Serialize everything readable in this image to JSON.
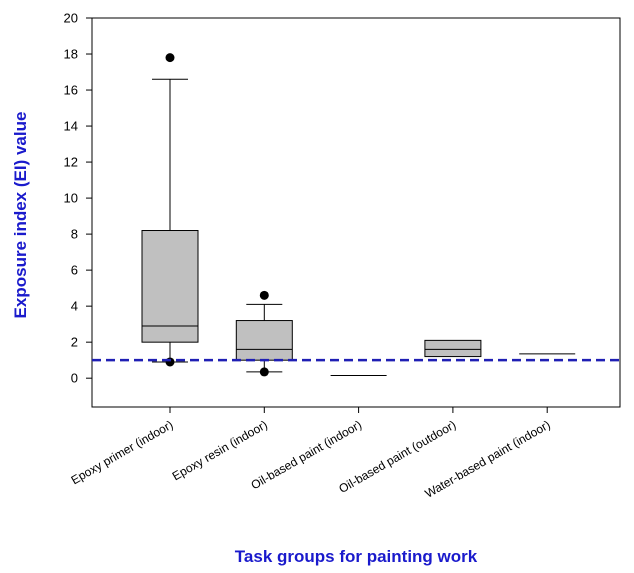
{
  "chart_data": {
    "type": "boxplot",
    "xlabel": "Task groups for painting work",
    "ylabel": "Exposure index (EI) value",
    "ylim": [
      -1.6,
      20
    ],
    "yticks": [
      0,
      2,
      4,
      6,
      8,
      10,
      12,
      14,
      16,
      18,
      20
    ],
    "reference_line": {
      "y": 1,
      "style": "dashed"
    },
    "categories": [
      "Epoxy primer (indoor)",
      "Epoxy resin (indoor)",
      "Oil-based paint (indoor)",
      "Oil-based paint (outdoor)",
      "Water-based paint (indoor)"
    ],
    "boxes": [
      {
        "whisker_low": 0.9,
        "q1": 2.0,
        "median": 2.9,
        "q3": 8.2,
        "whisker_high": 16.6,
        "outliers": [
          17.8,
          0.9
        ]
      },
      {
        "whisker_low": 0.35,
        "q1": 1.0,
        "median": 1.6,
        "q3": 3.2,
        "whisker_high": 4.1,
        "outliers": [
          4.6,
          0.35
        ]
      },
      {
        "whisker_low": 0.15,
        "q1": 0.15,
        "median": 0.15,
        "q3": 0.15,
        "whisker_high": 0.15,
        "outliers": []
      },
      {
        "whisker_low": 1.2,
        "q1": 1.2,
        "median": 1.6,
        "q3": 2.1,
        "whisker_high": 2.1,
        "outliers": []
      },
      {
        "whisker_low": 1.35,
        "q1": 1.35,
        "median": 1.35,
        "q3": 1.35,
        "whisker_high": 1.35,
        "outliers": []
      }
    ],
    "colors": {
      "box_fill": "#c0c0c0",
      "reference_line": "#1f1fb4",
      "axis_title": "#1a1acc"
    }
  }
}
